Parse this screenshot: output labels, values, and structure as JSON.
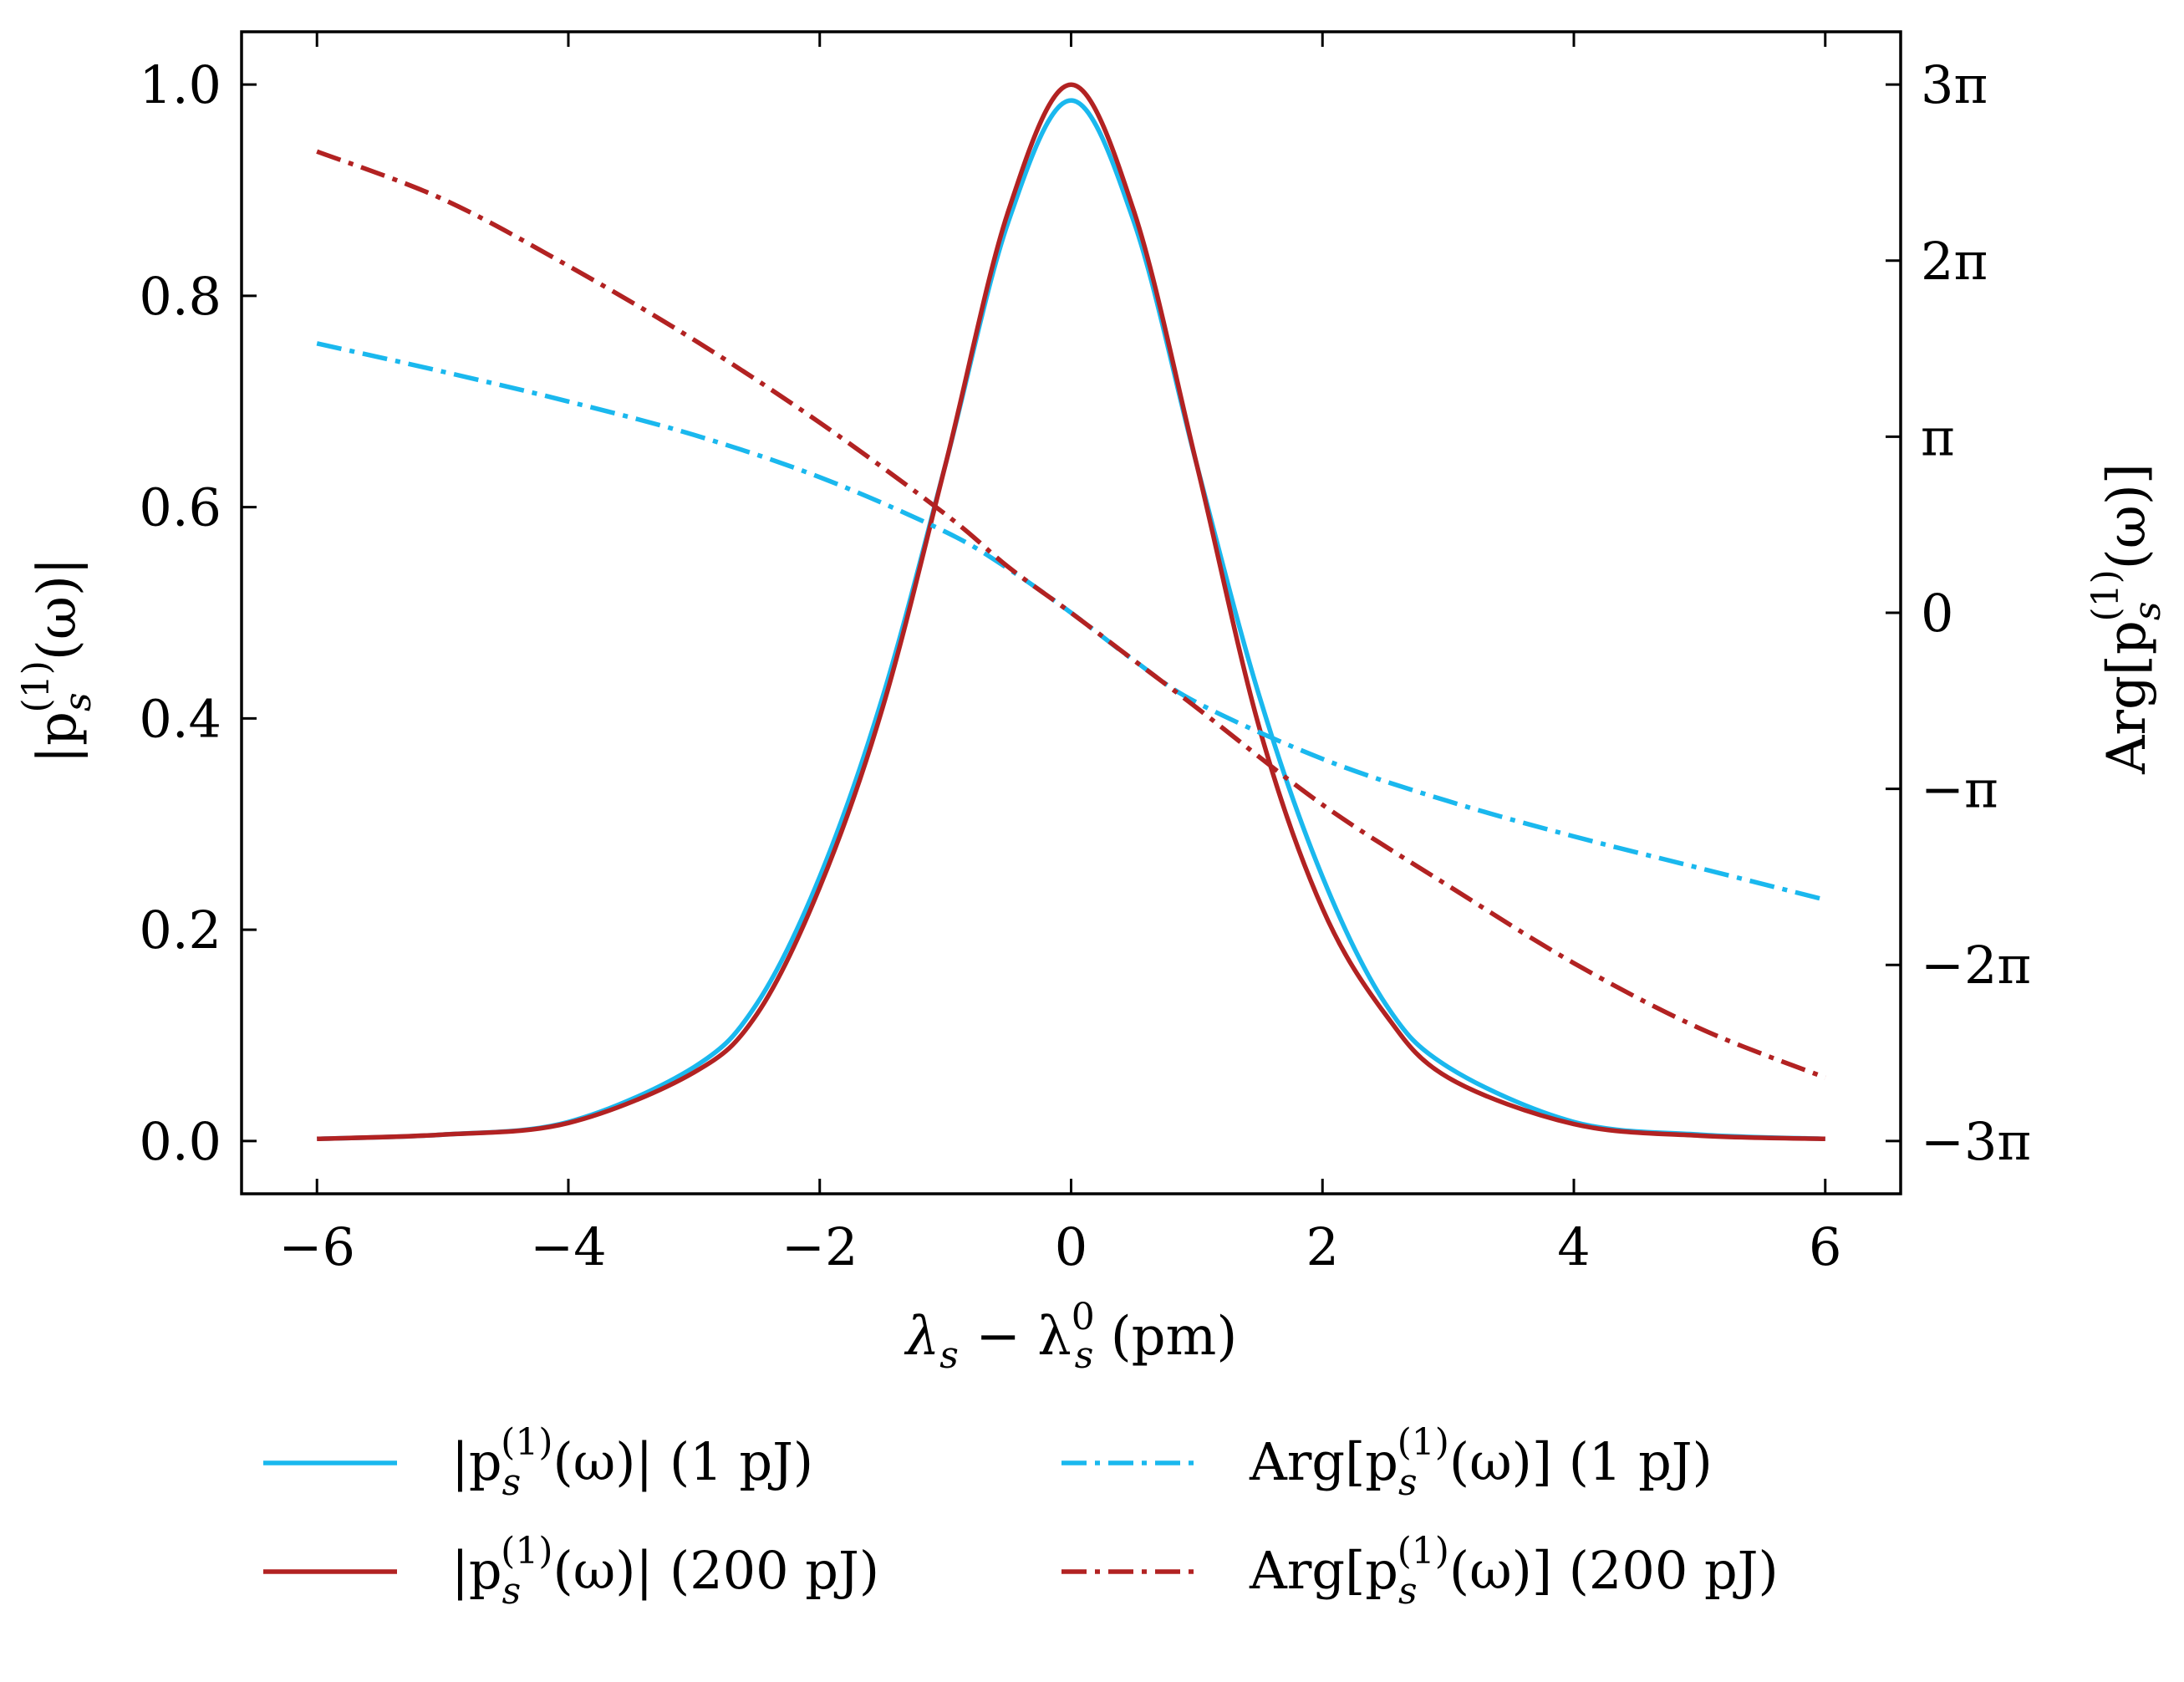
{
  "chart_data": {
    "type": "line",
    "x_axis": {
      "label_main": "λ",
      "label_sub_1": "s",
      "label_minus": " − λ",
      "label_sup": "0",
      "label_sub_2": "s",
      "label_unit": " (pm)",
      "range": [
        -6.6,
        6.6
      ],
      "ticks": [
        -6,
        -4,
        -2,
        0,
        2,
        4,
        6
      ],
      "tick_labels": [
        "−6",
        "−4",
        "−2",
        "0",
        "2",
        "4",
        "6"
      ]
    },
    "y_axis_left": {
      "label_open": "|p",
      "label_sub": "s",
      "label_sup": "(1)",
      "label_close": "(ω)|",
      "range": [
        -0.05,
        1.05
      ],
      "ticks": [
        0.0,
        0.2,
        0.4,
        0.6,
        0.8,
        1.0
      ],
      "tick_labels": [
        "0.0",
        "0.2",
        "0.4",
        "0.6",
        "0.8",
        "1.0"
      ]
    },
    "y_axis_right": {
      "label_open": "Arg[p",
      "label_sub": "s",
      "label_sup": "(1)",
      "label_close": "(ω)]",
      "range_in_pi": [
        -3.3,
        3.3
      ],
      "ticks_in_pi": [
        -3,
        -2,
        -1,
        0,
        1,
        2,
        3
      ],
      "tick_labels": [
        "−3π",
        "−2π",
        "−π",
        "0",
        "π",
        "2π",
        "3π"
      ]
    },
    "series": [
      {
        "name": "|p_s^(1)(ω)| (1 pJ)",
        "axis": "left",
        "style": "solid",
        "color": "#1ab8ee",
        "x": [
          -6,
          -5,
          -4,
          -3,
          -2.5,
          -2,
          -1.5,
          -1,
          -0.5,
          0,
          0.5,
          1,
          1.5,
          2,
          2.5,
          3,
          4,
          5,
          6
        ],
        "y": [
          0.002,
          0.006,
          0.018,
          0.07,
          0.13,
          0.25,
          0.42,
          0.64,
          0.87,
          0.985,
          0.87,
          0.64,
          0.42,
          0.25,
          0.13,
          0.07,
          0.018,
          0.006,
          0.002
        ]
      },
      {
        "name": "|p_s^(1)(ω)| (200 pJ)",
        "axis": "left",
        "style": "solid",
        "color": "#b22222",
        "x": [
          -6,
          -5,
          -4,
          -3,
          -2.5,
          -2,
          -1.5,
          -1,
          -0.5,
          0,
          0.5,
          1,
          1.5,
          2,
          2.5,
          3,
          4,
          5,
          6
        ],
        "y": [
          0.002,
          0.006,
          0.017,
          0.065,
          0.12,
          0.24,
          0.41,
          0.64,
          0.88,
          1.0,
          0.88,
          0.64,
          0.39,
          0.22,
          0.12,
          0.06,
          0.016,
          0.005,
          0.002
        ]
      },
      {
        "name": "Arg[p_s^(1)(ω)] (1 pJ)",
        "axis": "right",
        "style": "dashdot",
        "color": "#1ab8ee",
        "x": [
          -6,
          -5,
          -4,
          -3,
          -2,
          -1,
          -0.5,
          0,
          0.5,
          1,
          2,
          3,
          4,
          5,
          6
        ],
        "y_in_pi": [
          1.53,
          1.37,
          1.2,
          1.01,
          0.77,
          0.46,
          0.25,
          0.0,
          -0.27,
          -0.51,
          -0.83,
          -1.07,
          -1.27,
          -1.45,
          -1.63
        ]
      },
      {
        "name": "Arg[p_s^(1)(ω)] (200 pJ)",
        "axis": "right",
        "style": "dashdot",
        "color": "#b22222",
        "x": [
          -6,
          -5,
          -4,
          -3,
          -2,
          -1,
          -0.5,
          0,
          0.5,
          1,
          2,
          3,
          4,
          5,
          6
        ],
        "y_in_pi": [
          2.62,
          2.35,
          1.97,
          1.55,
          1.08,
          0.56,
          0.26,
          0.0,
          -0.27,
          -0.54,
          -1.09,
          -1.55,
          -1.99,
          -2.36,
          -2.64
        ]
      }
    ],
    "legend": {
      "placement": "below",
      "items": [
        {
          "open": "|p",
          "sub": "s",
          "sup": "(1)",
          "close": "(ω)|",
          "suffix": " (1 pJ)",
          "color": "#1ab8ee",
          "style": "solid"
        },
        {
          "open": "|p",
          "sub": "s",
          "sup": "(1)",
          "close": "(ω)|",
          "suffix": " (200 pJ)",
          "color": "#b22222",
          "style": "solid"
        },
        {
          "open": "Arg[p",
          "sub": "s",
          "sup": "(1)",
          "close": "(ω)]",
          "suffix": " (1 pJ)",
          "color": "#1ab8ee",
          "style": "dashdot"
        },
        {
          "open": "Arg[p",
          "sub": "s",
          "sup": "(1)",
          "close": "(ω)]",
          "suffix": " (200 pJ)",
          "color": "#b22222",
          "style": "dashdot"
        }
      ]
    }
  }
}
